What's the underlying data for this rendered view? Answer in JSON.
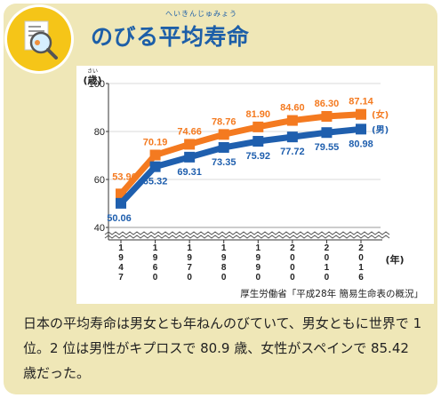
{
  "header": {
    "title": "のびる平均寿命",
    "ruby": "へいきんじゅみょう",
    "icon": "magnifier-report-icon"
  },
  "chart_data": {
    "type": "line",
    "categories": [
      "1947",
      "1960",
      "1970",
      "1980",
      "1990",
      "2000",
      "2010",
      "2016"
    ],
    "series": [
      {
        "name": "(女)",
        "color": "#f47a20",
        "values": [
          53.96,
          70.19,
          74.66,
          78.76,
          81.9,
          84.6,
          86.3,
          87.14
        ],
        "labels": [
          "53.96",
          "70.19",
          "74.66",
          "78.76",
          "81.90",
          "84.60",
          "86.30",
          "87.14"
        ]
      },
      {
        "name": "(男)",
        "color": "#1f5fae",
        "values": [
          50.06,
          65.32,
          69.31,
          73.35,
          75.92,
          77.72,
          79.55,
          80.98
        ],
        "labels": [
          "50.06",
          "65.32",
          "69.31",
          "73.35",
          "75.92",
          "77.72",
          "79.55",
          "80.98"
        ]
      }
    ],
    "yticks": [
      "100",
      "80",
      "60",
      "40"
    ],
    "ylabel": "(歳)",
    "ylabel_ruby": "さい",
    "xlabel": "(年)",
    "ylim": [
      40,
      100
    ],
    "axis_break": true
  },
  "source": "厚生労働省「平成28年 簡易生命表の概況」",
  "description": "日本の平均寿命は男女とも年ねんのびていて、男女ともに世界で 1 位。2 位は男性がキプロスで 80.9 歳、女性がスペインで 85.42 歳だった。"
}
